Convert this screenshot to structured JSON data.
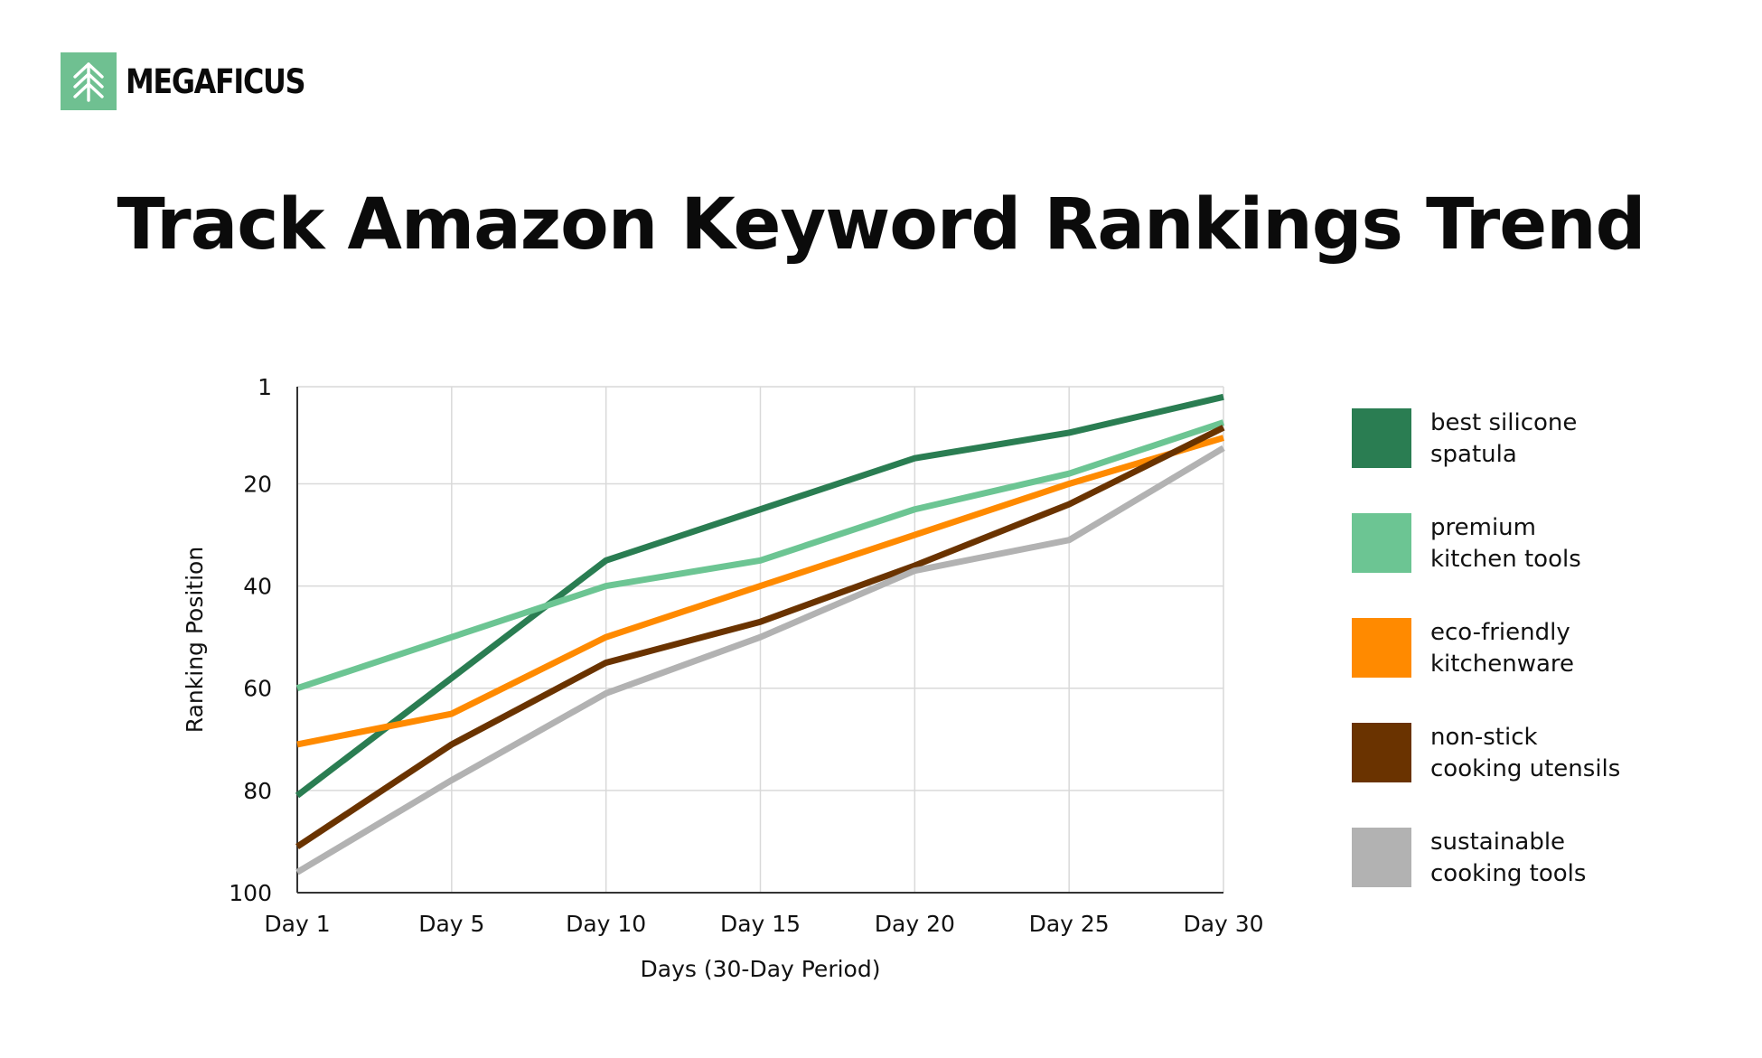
{
  "brand": {
    "name": "MEGAFICUS",
    "logo_icon": "leaf-arrow-icon",
    "logo_color": "#6fc091"
  },
  "title": "Track Amazon Keyword Rankings Trend",
  "chart_data": {
    "type": "line",
    "title": "Track Amazon Keyword Rankings Trend",
    "xlabel": "Days (30-Day Period)",
    "ylabel": "Ranking Position",
    "categories": [
      "Day 1",
      "Day 5",
      "Day 10",
      "Day 15",
      "Day 20",
      "Day 25",
      "Day 30"
    ],
    "y_ticks": [
      1,
      20,
      40,
      60,
      80,
      100
    ],
    "ylim": [
      1,
      100
    ],
    "y_inverted": true,
    "grid": true,
    "legend_position": "right",
    "series": [
      {
        "name": "best silicone spatula",
        "color": "#2a7d52",
        "values": [
          81,
          58,
          35,
          25,
          15,
          10,
          3
        ]
      },
      {
        "name": "premium kitchen tools",
        "color": "#6cc593",
        "values": [
          60,
          50,
          40,
          35,
          25,
          18,
          8
        ]
      },
      {
        "name": "eco-friendly kitchenware",
        "color": "#ff8a00",
        "values": [
          71,
          65,
          50,
          40,
          30,
          20,
          11
        ]
      },
      {
        "name": "non-stick cooking utensils",
        "color": "#6a3300",
        "values": [
          91,
          71,
          55,
          47,
          36,
          24,
          9
        ]
      },
      {
        "name": "sustainable cooking tools",
        "color": "#b2b2b2",
        "values": [
          96,
          78,
          61,
          50,
          37,
          31,
          13
        ]
      }
    ],
    "legend_labels": [
      [
        "best silicone",
        "spatula"
      ],
      [
        "premium",
        "kitchen tools"
      ],
      [
        "eco-friendly",
        "kitchenware"
      ],
      [
        "non-stick",
        "cooking utensils"
      ],
      [
        "sustainable",
        "cooking tools"
      ]
    ]
  }
}
